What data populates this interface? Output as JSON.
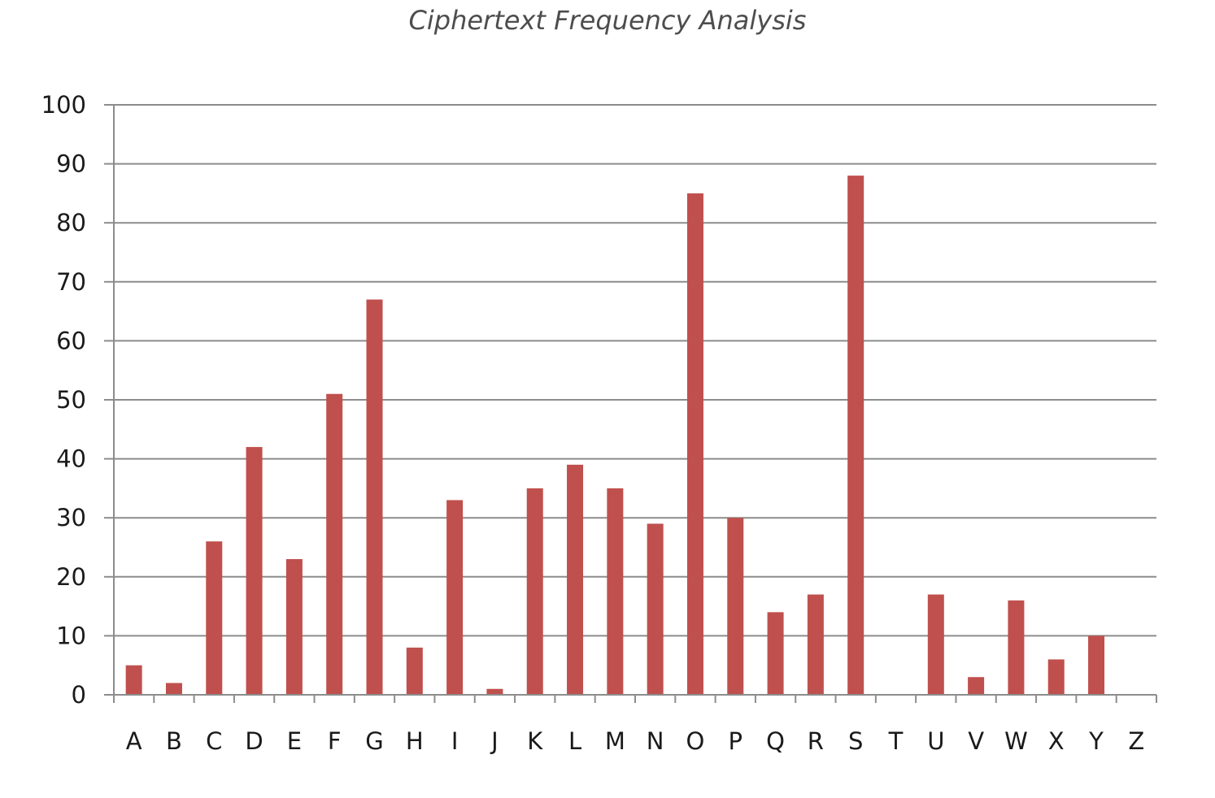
{
  "chart_data": {
    "type": "bar",
    "title": "Ciphertext Frequency Analysis",
    "xlabel": "",
    "ylabel": "",
    "categories": [
      "A",
      "B",
      "C",
      "D",
      "E",
      "F",
      "G",
      "H",
      "I",
      "J",
      "K",
      "L",
      "M",
      "N",
      "O",
      "P",
      "Q",
      "R",
      "S",
      "T",
      "U",
      "V",
      "W",
      "X",
      "Y",
      "Z"
    ],
    "values": [
      5,
      2,
      26,
      42,
      23,
      51,
      67,
      8,
      33,
      1,
      35,
      39,
      35,
      29,
      85,
      30,
      14,
      17,
      88,
      0,
      17,
      3,
      16,
      6,
      10,
      0
    ],
    "ylim": [
      0,
      100
    ],
    "yticks": [
      0,
      10,
      20,
      30,
      40,
      50,
      60,
      70,
      80,
      90,
      100
    ],
    "grid": true,
    "legend": "none",
    "colors": {
      "bar": "#c0504d",
      "gridline": "#8c8c8c",
      "axis": "#8c8c8c"
    }
  }
}
